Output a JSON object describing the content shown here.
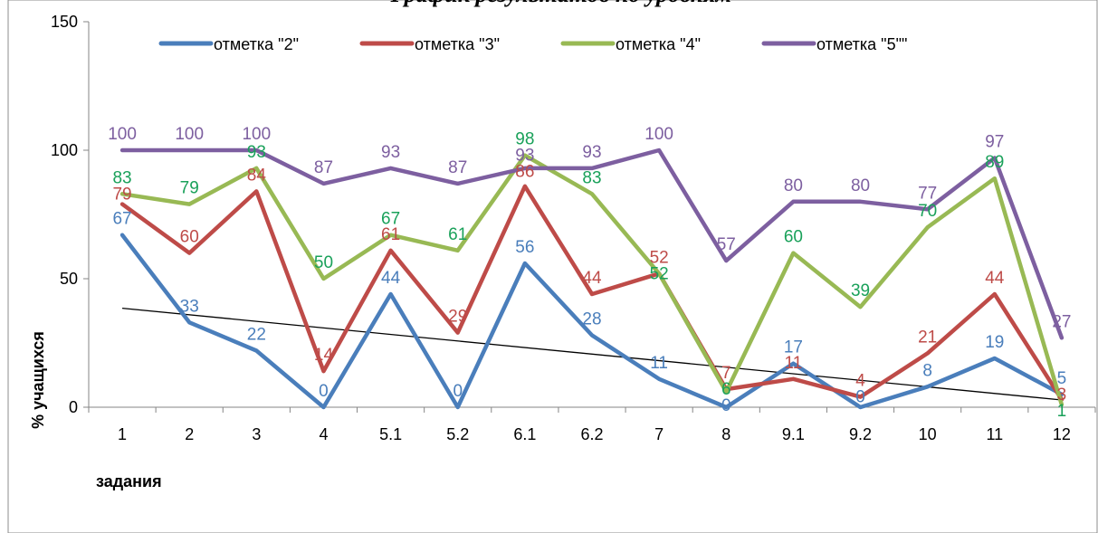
{
  "chart_data": {
    "type": "line",
    "title": "График результатов по уровням",
    "xlabel": "задания",
    "ylabel": "% учащихся",
    "ylim": [
      0,
      150
    ],
    "yticks": [
      0,
      50,
      100,
      150
    ],
    "categories": [
      "1",
      "2",
      "3",
      "4",
      "5.1",
      "5.2",
      "6.1",
      "6.2",
      "7",
      "8",
      "9.1",
      "9.2",
      "10",
      "11",
      "12"
    ],
    "legend_position": "top",
    "grid": false,
    "series": [
      {
        "name": "отметка \"2\"",
        "color": "#4a7ebb",
        "values": [
          67,
          33,
          22,
          0,
          44,
          0,
          56,
          28,
          11,
          0,
          17,
          0,
          8,
          19,
          5
        ]
      },
      {
        "name": "отметка \"3\"",
        "color": "#be4b48",
        "values": [
          79,
          60,
          84,
          14,
          61,
          29,
          86,
          44,
          52,
          7,
          11,
          4,
          21,
          44,
          3
        ]
      },
      {
        "name": "отметка \"4\"",
        "color": "#98b954",
        "label_color": "#1aa15a",
        "values": [
          83,
          79,
          93,
          50,
          67,
          61,
          98,
          83,
          52,
          6,
          60,
          39,
          70,
          89,
          1
        ]
      },
      {
        "name": "отметка \"5\"\"",
        "color": "#7d5fa0",
        "values": [
          100,
          100,
          100,
          87,
          93,
          87,
          93,
          93,
          100,
          57,
          80,
          80,
          77,
          97,
          27
        ]
      }
    ],
    "trendline": {
      "series": "отметка \"2\"",
      "type": "linear",
      "color": "#000000"
    }
  }
}
